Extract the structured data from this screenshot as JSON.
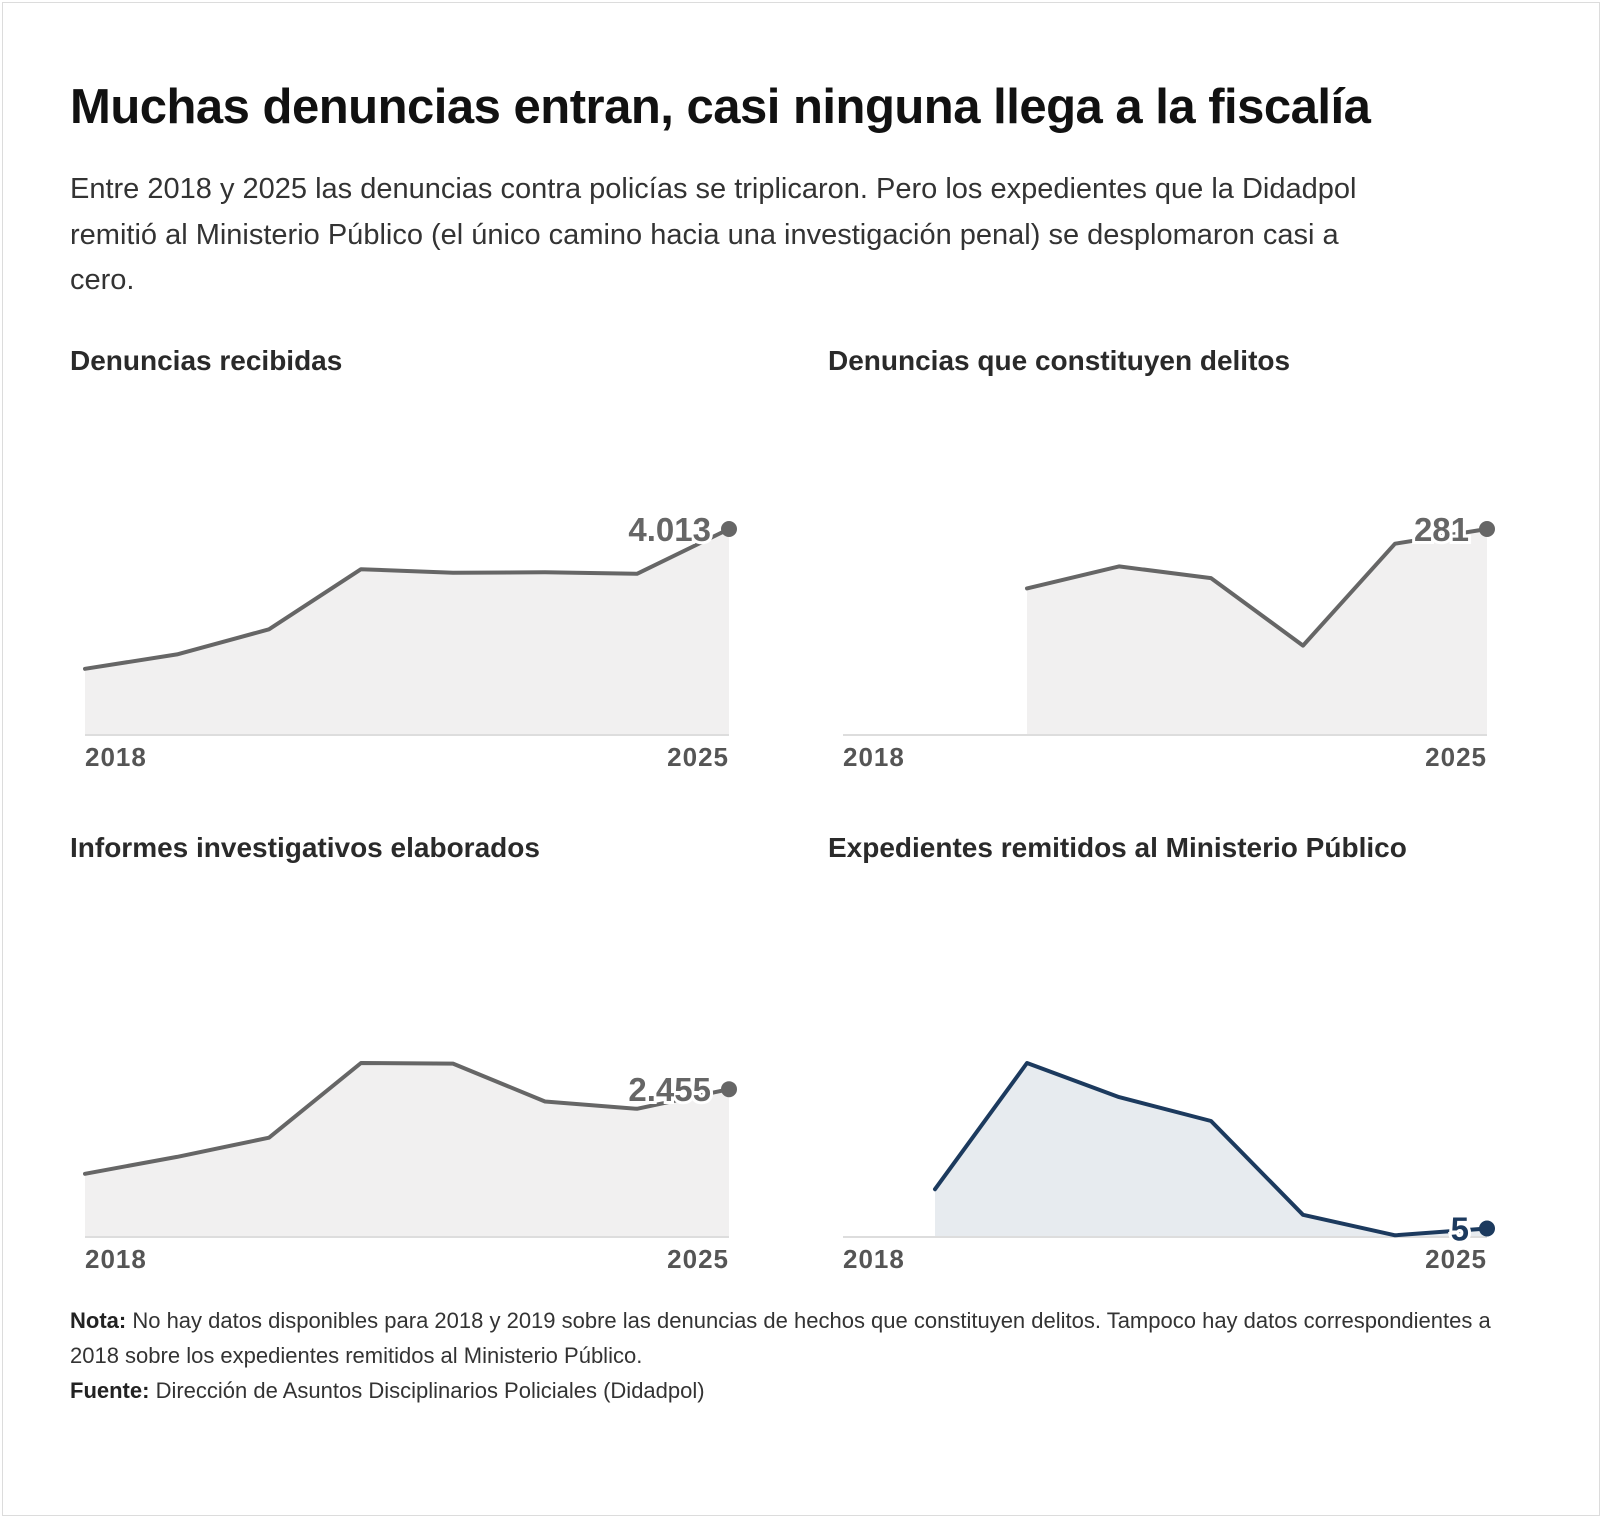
{
  "header": {
    "title": "Muchas denuncias entran, casi ninguna llega a la fiscalía",
    "subtitle": "Entre 2018 y 2025 las denuncias contra policías se triplicaron. Pero los expedientes que la Didadpol remitió al Ministerio Público (el único camino hacia una investigación penal) se desplomaron casi a cero."
  },
  "footer": {
    "note_label": "Nota:",
    "note_text": " No hay datos disponibles para 2018 y 2019 sobre las denuncias de hechos que constituyen delitos. Tampoco hay datos correspondientes a 2018 sobre los expedientes remitidos al Ministerio Público.",
    "source_label": "Fuente:",
    "source_text": " Dirección de Asuntos Disciplinarios Policiales (Didadpol)"
  },
  "colors": {
    "gray_line": "#666666",
    "gray_fill": "#f1f0f0",
    "navy_line": "#1c3a5e",
    "navy_fill": "#e7ebef",
    "baseline": "#dddddd",
    "tick_text": "#555555"
  },
  "chart_data": [
    {
      "type": "area",
      "title": "Denuncias recibidas",
      "x": [
        2018,
        2019,
        2020,
        2021,
        2022,
        2023,
        2024,
        2025
      ],
      "series": [
        {
          "values": [
            1290,
            1570,
            2060,
            3230,
            3160,
            3170,
            3140,
            4013
          ]
        }
      ],
      "end_label": "4.013",
      "tick_labels": [
        "2018",
        "2025"
      ],
      "ylim": [
        0,
        4013
      ],
      "color": "gray"
    },
    {
      "type": "area",
      "title": "Denuncias que constituyen delitos",
      "x": [
        2018,
        2019,
        2020,
        2021,
        2022,
        2023,
        2024,
        2025
      ],
      "series": [
        {
          "values": [
            null,
            null,
            200,
            230,
            214,
            122,
            261,
            281
          ]
        }
      ],
      "end_label": "281",
      "tick_labels": [
        "2018",
        "2025"
      ],
      "ylim": [
        0,
        281
      ],
      "color": "gray"
    },
    {
      "type": "area",
      "title": "Informes investigativos elaborados",
      "x": [
        2018,
        2019,
        2020,
        2021,
        2022,
        2023,
        2024,
        2025
      ],
      "series": [
        {
          "values": [
            1050,
            1330,
            1650,
            2890,
            2880,
            2250,
            2130,
            2455
          ]
        }
      ],
      "end_label": "2.455",
      "tick_labels": [
        "2018",
        "2025"
      ],
      "ylim": [
        0,
        2890
      ],
      "color": "gray"
    },
    {
      "type": "area",
      "title": "Expedientes remitidos al Ministerio Público",
      "x": [
        2018,
        2019,
        2020,
        2021,
        2022,
        2023,
        2024,
        2025
      ],
      "series": [
        {
          "values": [
            null,
            28,
            102,
            82,
            68,
            13,
            1,
            5
          ]
        }
      ],
      "end_label": "5",
      "tick_labels": [
        "2018",
        "2025"
      ],
      "ylim": [
        0,
        102
      ],
      "color": "navy"
    }
  ]
}
